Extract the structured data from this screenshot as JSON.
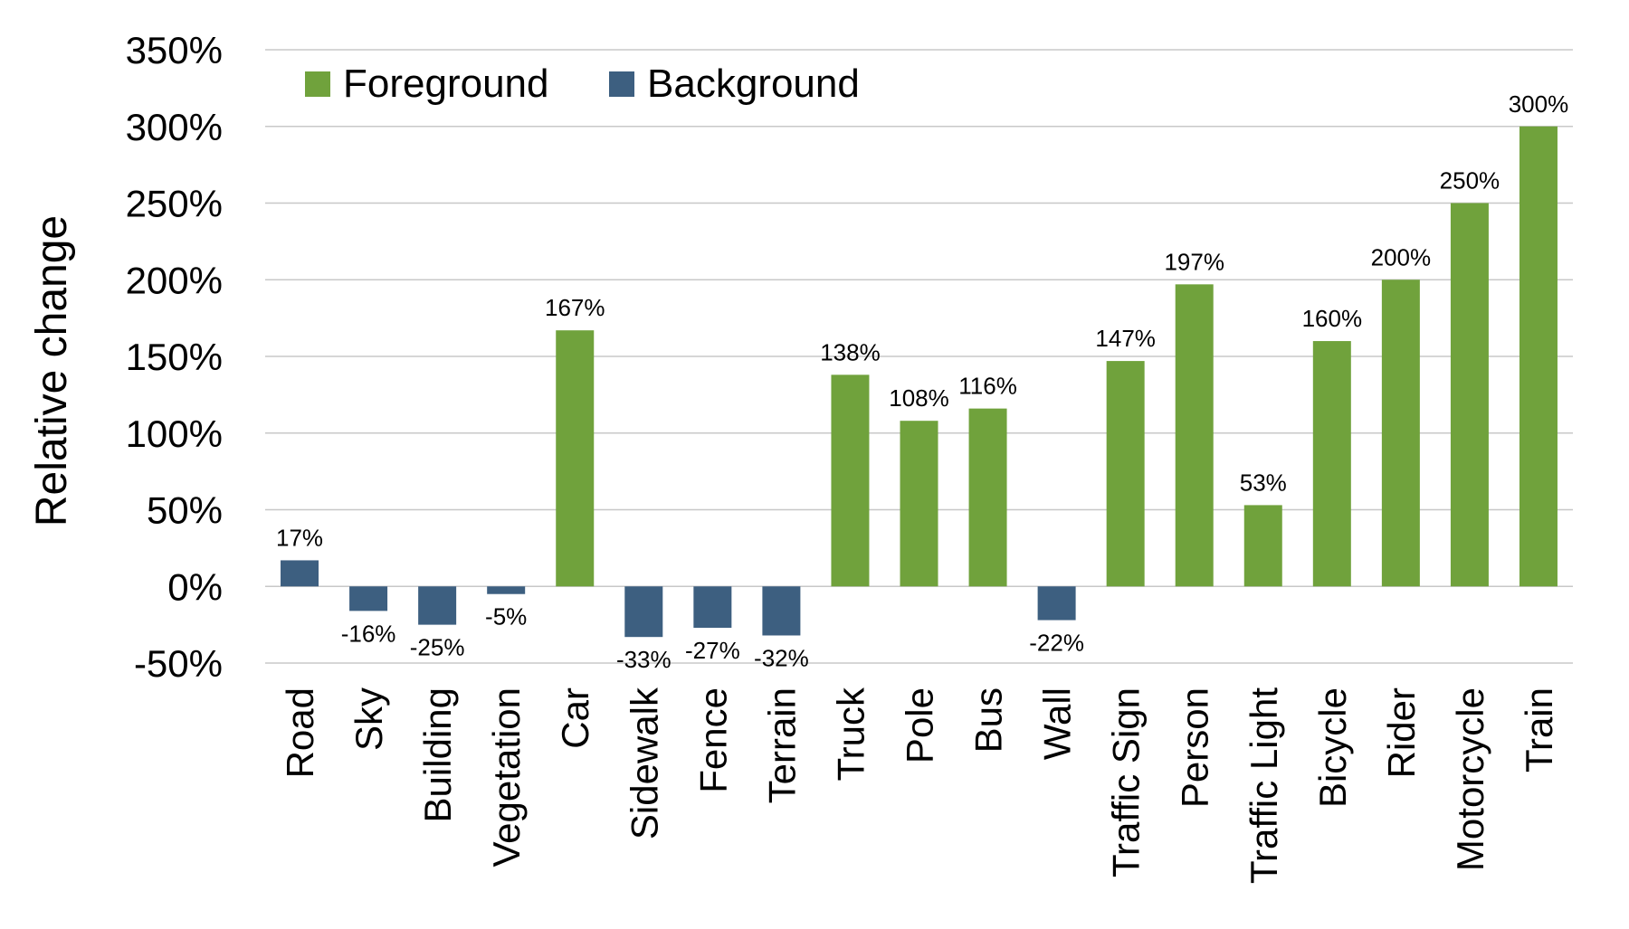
{
  "chart_data": {
    "type": "bar",
    "title": "",
    "xlabel": "",
    "ylabel": "Relative change",
    "ylim": [
      -50,
      350
    ],
    "y_ticks": [
      -50,
      0,
      50,
      100,
      150,
      200,
      250,
      300,
      350
    ],
    "y_tick_labels": [
      "-50%",
      "0%",
      "50%",
      "100%",
      "150%",
      "200%",
      "250%",
      "300%",
      "350%"
    ],
    "grid": true,
    "legend_position": "top-left",
    "series": [
      {
        "name": "Foreground",
        "color": "#70a23c"
      },
      {
        "name": "Background",
        "color": "#3d5f80"
      }
    ],
    "categories": [
      "Road",
      "Sky",
      "Building",
      "Vegetation",
      "Car",
      "Sidewalk",
      "Fence",
      "Terrain",
      "Truck",
      "Pole",
      "Bus",
      "Wall",
      "Traffic Sign",
      "Person",
      "Traffic Light",
      "Bicycle",
      "Rider",
      "Motorcycle",
      "Train"
    ],
    "values": [
      17,
      -16,
      -25,
      -5,
      167,
      -33,
      -27,
      -32,
      138,
      108,
      116,
      -22,
      147,
      197,
      53,
      160,
      200,
      250,
      300
    ],
    "value_labels": [
      "17%",
      "-16%",
      "-25%",
      "-5%",
      "167%",
      "-33%",
      "-27%",
      "-32%",
      "138%",
      "108%",
      "116%",
      "-22%",
      "147%",
      "197%",
      "53%",
      "160%",
      "200%",
      "250%",
      "300%"
    ],
    "groups": [
      "Background",
      "Background",
      "Background",
      "Background",
      "Foreground",
      "Background",
      "Background",
      "Background",
      "Foreground",
      "Foreground",
      "Foreground",
      "Background",
      "Foreground",
      "Foreground",
      "Foreground",
      "Foreground",
      "Foreground",
      "Foreground",
      "Foreground"
    ]
  }
}
